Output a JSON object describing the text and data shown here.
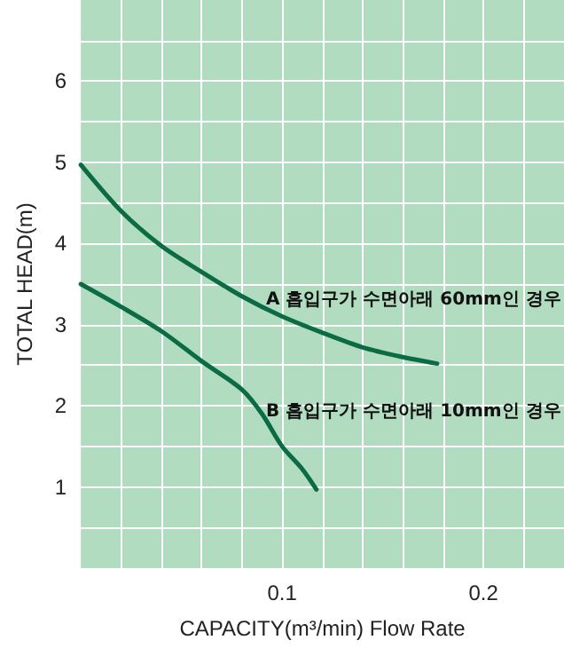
{
  "chart_data": {
    "type": "line",
    "xlabel": "CAPACITY(m³/min) Flow Rate",
    "ylabel": "TOTAL HEAD(m)",
    "xlim": [
      0,
      0.24
    ],
    "ylim": [
      0,
      7
    ],
    "xticks": [
      {
        "value": 0.02,
        "label": null
      },
      {
        "value": 0.04,
        "label": null
      },
      {
        "value": 0.06,
        "label": null
      },
      {
        "value": 0.08,
        "label": null
      },
      {
        "value": 0.1,
        "label": "0.1"
      },
      {
        "value": 0.12,
        "label": null
      },
      {
        "value": 0.14,
        "label": null
      },
      {
        "value": 0.16,
        "label": null
      },
      {
        "value": 0.18,
        "label": null
      },
      {
        "value": 0.2,
        "label": "0.2"
      },
      {
        "value": 0.22,
        "label": null
      }
    ],
    "yticks": [
      {
        "value": 0.5,
        "label": null
      },
      1,
      {
        "value": 1.5,
        "label": null
      },
      2,
      {
        "value": 2.5,
        "label": null
      },
      3,
      {
        "value": 3.5,
        "label": null
      },
      4,
      {
        "value": 4.5,
        "label": null
      },
      5,
      {
        "value": 5.5,
        "label": null
      },
      6,
      {
        "value": 6.5,
        "label": null
      }
    ],
    "grid": true,
    "marker": "none",
    "line_style": "solid",
    "series": [
      {
        "color": "#0b6b45",
        "x": [
          0,
          0.02,
          0.04,
          0.06,
          0.08,
          0.1,
          0.12,
          0.14,
          0.16,
          0.177
        ],
        "values": [
          4.97,
          4.4,
          3.97,
          3.65,
          3.35,
          3.1,
          2.9,
          2.72,
          2.6,
          2.52
        ]
      },
      {
        "color": "#0b6b45",
        "x": [
          0,
          0.02,
          0.04,
          0.06,
          0.08,
          0.09,
          0.1,
          0.11,
          0.117
        ],
        "values": [
          3.5,
          3.22,
          2.92,
          2.55,
          2.2,
          1.9,
          1.5,
          1.22,
          0.97
        ]
      }
    ],
    "annotations": [
      "A 흡입구가 수면아래 60mm인 경우",
      "B 흡입구가 수면아래 10mm인 경우"
    ]
  }
}
